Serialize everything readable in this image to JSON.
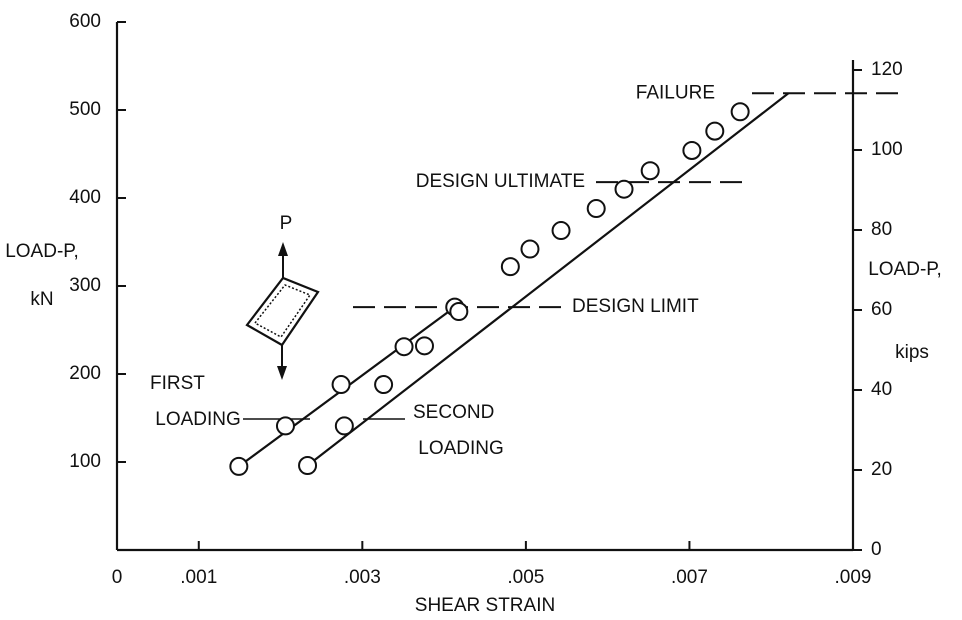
{
  "chart_data": {
    "type": "scatter",
    "xlabel": "SHEAR STRAIN",
    "ylabel": [
      "LOAD-P,",
      "kN"
    ],
    "y2label": [
      "LOAD-P,",
      "kips"
    ],
    "specimen_label": "P",
    "xlim": [
      0,
      0.009
    ],
    "xticks": [
      0,
      {
        "value": 0.001,
        "label": ".001"
      },
      {
        "value": 0.003,
        "label": ".003"
      },
      {
        "value": 0.005,
        "label": ".005"
      },
      {
        "value": 0.007,
        "label": ".007"
      },
      {
        "value": 0.009,
        "label": ".009"
      }
    ],
    "ylim": [
      0,
      600
    ],
    "yticks": [
      100,
      200,
      300,
      400,
      500,
      600
    ],
    "y2lim": [
      0,
      132
    ],
    "y2ticks": [
      0,
      20,
      40,
      60,
      80,
      100,
      120
    ],
    "series": [
      {
        "name": "FIRST LOADING",
        "x": [
          0.00149,
          0.00206,
          0.00274,
          0.00351,
          0.00413
        ],
        "values": [
          95,
          141,
          188,
          231,
          276
        ],
        "fit_x": [
          0.00149,
          0.00413
        ],
        "fit_values": [
          95,
          276
        ]
      },
      {
        "name": "SECOND LOADING",
        "x": [
          0.00233,
          0.00278,
          0.00326,
          0.00376,
          0.00418,
          0.00481,
          0.00505,
          0.00543,
          0.00586,
          0.0062,
          0.00652,
          0.00703,
          0.00731,
          0.00762
        ],
        "values": [
          96,
          141,
          188,
          232,
          271,
          322,
          342,
          363,
          388,
          410,
          431,
          454,
          476,
          498
        ],
        "fit_x": [
          0.00233,
          0.00821
        ],
        "fit_values": [
          96,
          519
        ]
      }
    ],
    "annotations": [
      {
        "text": "FAILURE",
        "value": 519
      },
      {
        "text": "DESIGN ULTIMATE",
        "value": 418
      },
      {
        "text": "DESIGN LIMIT",
        "value": 276
      }
    ]
  }
}
